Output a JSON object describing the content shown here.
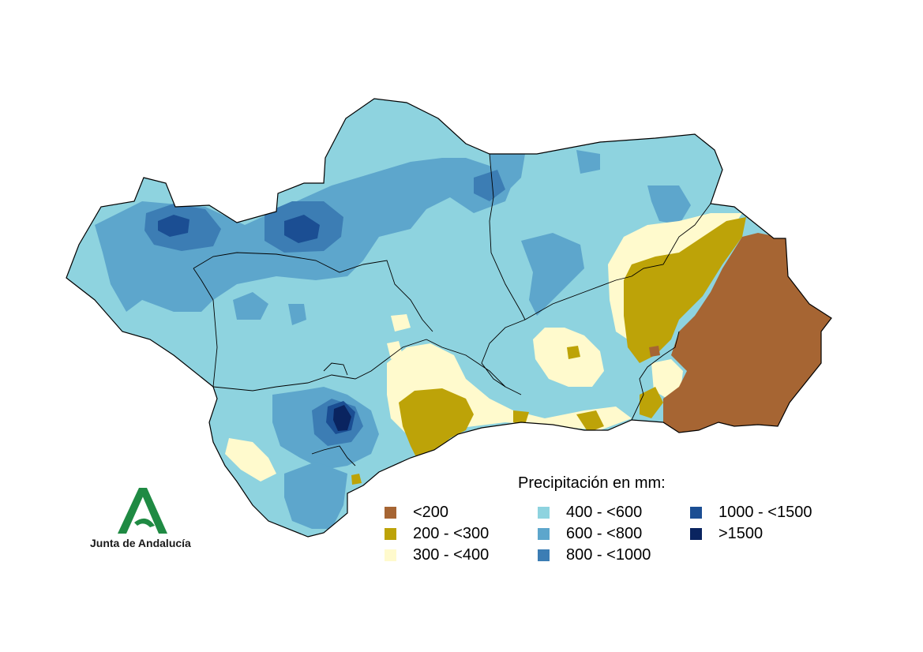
{
  "map": {
    "region": "Andalucía"
  },
  "legend": {
    "title": "Precipitación en mm:",
    "classes": [
      {
        "label": "<200",
        "color": "#A66533"
      },
      {
        "label": "200 - <300",
        "color": "#BDA308"
      },
      {
        "label": "300 - <400",
        "color": "#FFFACD"
      },
      {
        "label": "400 - <600",
        "color": "#8ED3DF"
      },
      {
        "label": "600 - <800",
        "color": "#5DA6CC"
      },
      {
        "label": "800 - <1000",
        "color": "#3C7DB4"
      },
      {
        "label": "1000 - <1500",
        "color": "#1B4E93"
      },
      {
        "label": ">1500",
        "color": "#0A2460"
      }
    ]
  },
  "logo": {
    "text": "Junta de Andalucía",
    "color": "#1F8A43"
  }
}
